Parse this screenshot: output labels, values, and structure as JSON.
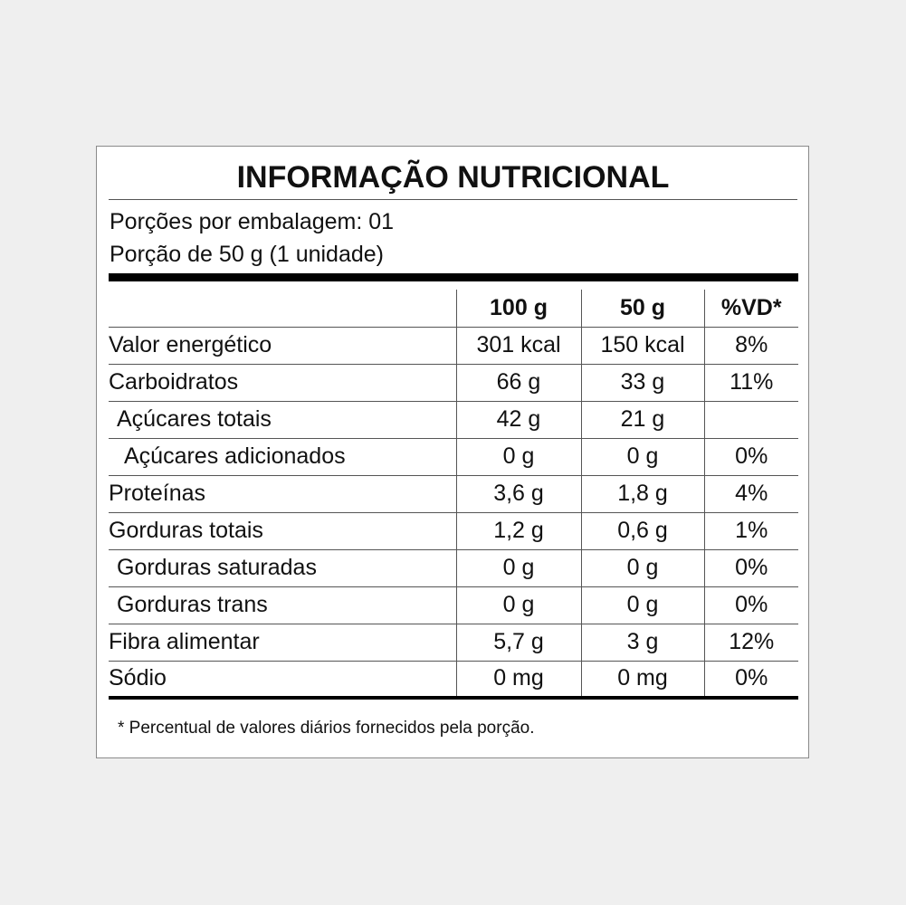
{
  "title": "INFORMAÇÃO NUTRICIONAL",
  "servings_per_package": "Porções por embalagem: 01",
  "serving_size": "Porção de 50 g (1 unidade)",
  "columns": [
    "100 g",
    "50 g",
    "%VD*"
  ],
  "rows": [
    {
      "name": "Valor energético",
      "per100": "301 kcal",
      "per50": "150 kcal",
      "vd": "8%"
    },
    {
      "name": "Carboidratos",
      "per100": "66 g",
      "per50": "33 g",
      "vd": "11%"
    },
    {
      "name": "Açúcares totais",
      "per100": "42 g",
      "per50": "21 g",
      "vd": ""
    },
    {
      "name": "Açúcares adicionados",
      "per100": "0 g",
      "per50": "0 g",
      "vd": "0%"
    },
    {
      "name": "Proteínas",
      "per100": "3,6 g",
      "per50": "1,8 g",
      "vd": "4%"
    },
    {
      "name": "Gorduras totais",
      "per100": "1,2 g",
      "per50": "0,6 g",
      "vd": "1%"
    },
    {
      "name": "Gorduras saturadas",
      "per100": "0 g",
      "per50": "0 g",
      "vd": "0%"
    },
    {
      "name": "Gorduras trans",
      "per100": "0 g",
      "per50": "0 g",
      "vd": "0%"
    },
    {
      "name": "Fibra alimentar",
      "per100": "5,7 g",
      "per50": "3 g",
      "vd": "12%"
    },
    {
      "name": "Sódio",
      "per100": "0 mg",
      "per50": "0 mg",
      "vd": "0%"
    }
  ],
  "footnote": "* Percentual de valores diários fornecidos pela porção."
}
